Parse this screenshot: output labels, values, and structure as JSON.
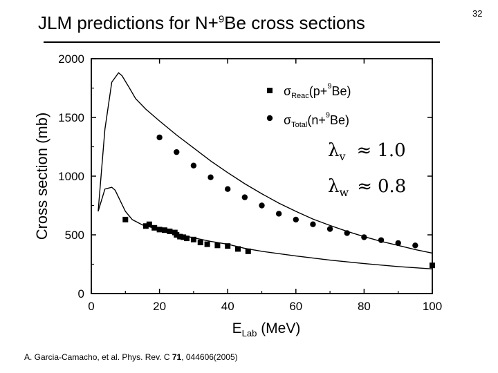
{
  "slide": {
    "title_main": "JLM predictions for N+",
    "title_sup": "9",
    "title_end": "Be cross sections",
    "page_number": "32",
    "citation_pre": "A. Garcia-Camacho, et al. Phys. Rev. C ",
    "citation_vol": "71",
    "citation_post": ", 044606(2005)"
  },
  "chart_data": {
    "type": "scatter",
    "title": "",
    "xlabel": "E",
    "xlabel_sub": "Lab",
    "xlabel_unit": " (MeV)",
    "ylabel": "Cross section (mb)",
    "xlim": [
      0,
      100
    ],
    "ylim": [
      0,
      2000
    ],
    "x_ticks": [
      0,
      20,
      40,
      60,
      80,
      100
    ],
    "y_ticks": [
      0,
      500,
      1000,
      1500,
      2000
    ],
    "grid": false,
    "legend_position": "top-right",
    "legend": [
      {
        "sigma": "σ",
        "sub": "Reac",
        "pre": "(p+",
        "sup": "9",
        "post": "Be)",
        "marker": "square"
      },
      {
        "sigma": "σ",
        "sub": "Total",
        "pre": "(n+",
        "sup": "9",
        "post": "Be)",
        "marker": "circle"
      }
    ],
    "annotations": [
      {
        "symbol": "λ",
        "sub": "v",
        "relation": "≈",
        "value": "1.0"
      },
      {
        "symbol": "λ",
        "sub": "w",
        "relation": "≈",
        "value": "0.8"
      }
    ],
    "series": [
      {
        "name": "σReac(p+9Be) data",
        "marker": "square",
        "x": [
          10,
          16,
          17,
          18.5,
          20,
          21.5,
          23,
          24.5,
          25,
          26,
          27,
          28,
          30,
          32,
          34,
          37,
          40,
          43,
          46,
          100
        ],
        "y": [
          630,
          575,
          590,
          560,
          545,
          540,
          530,
          520,
          500,
          485,
          480,
          470,
          460,
          435,
          420,
          410,
          405,
          380,
          360,
          240
        ]
      },
      {
        "name": "σTotal(n+9Be) data",
        "marker": "circle",
        "x": [
          20,
          25,
          30,
          35,
          40,
          45,
          50,
          55,
          60,
          65,
          70,
          75,
          80,
          85,
          90,
          95
        ],
        "y": [
          1330,
          1205,
          1090,
          990,
          890,
          820,
          750,
          680,
          630,
          590,
          550,
          515,
          480,
          455,
          430,
          410
        ]
      },
      {
        "name": "JLM σTotal curve",
        "style": "line",
        "x": [
          2,
          4,
          6,
          8,
          9,
          11,
          13,
          16,
          20,
          25,
          30,
          35,
          40,
          45,
          50,
          55,
          60,
          65,
          70,
          75,
          80,
          85,
          90,
          95,
          100
        ],
        "y": [
          700,
          1400,
          1800,
          1880,
          1855,
          1760,
          1660,
          1570,
          1470,
          1350,
          1240,
          1130,
          1030,
          935,
          850,
          770,
          700,
          635,
          580,
          530,
          485,
          445,
          410,
          375,
          345
        ]
      },
      {
        "name": "JLM σReac curve",
        "style": "line",
        "x": [
          2,
          4,
          6,
          7,
          8,
          10,
          12,
          15,
          20,
          25,
          30,
          35,
          40,
          45,
          50,
          60,
          70,
          80,
          90,
          100
        ],
        "y": [
          700,
          890,
          905,
          880,
          820,
          700,
          630,
          585,
          545,
          505,
          475,
          445,
          420,
          385,
          360,
          320,
          285,
          255,
          230,
          210
        ]
      }
    ]
  }
}
